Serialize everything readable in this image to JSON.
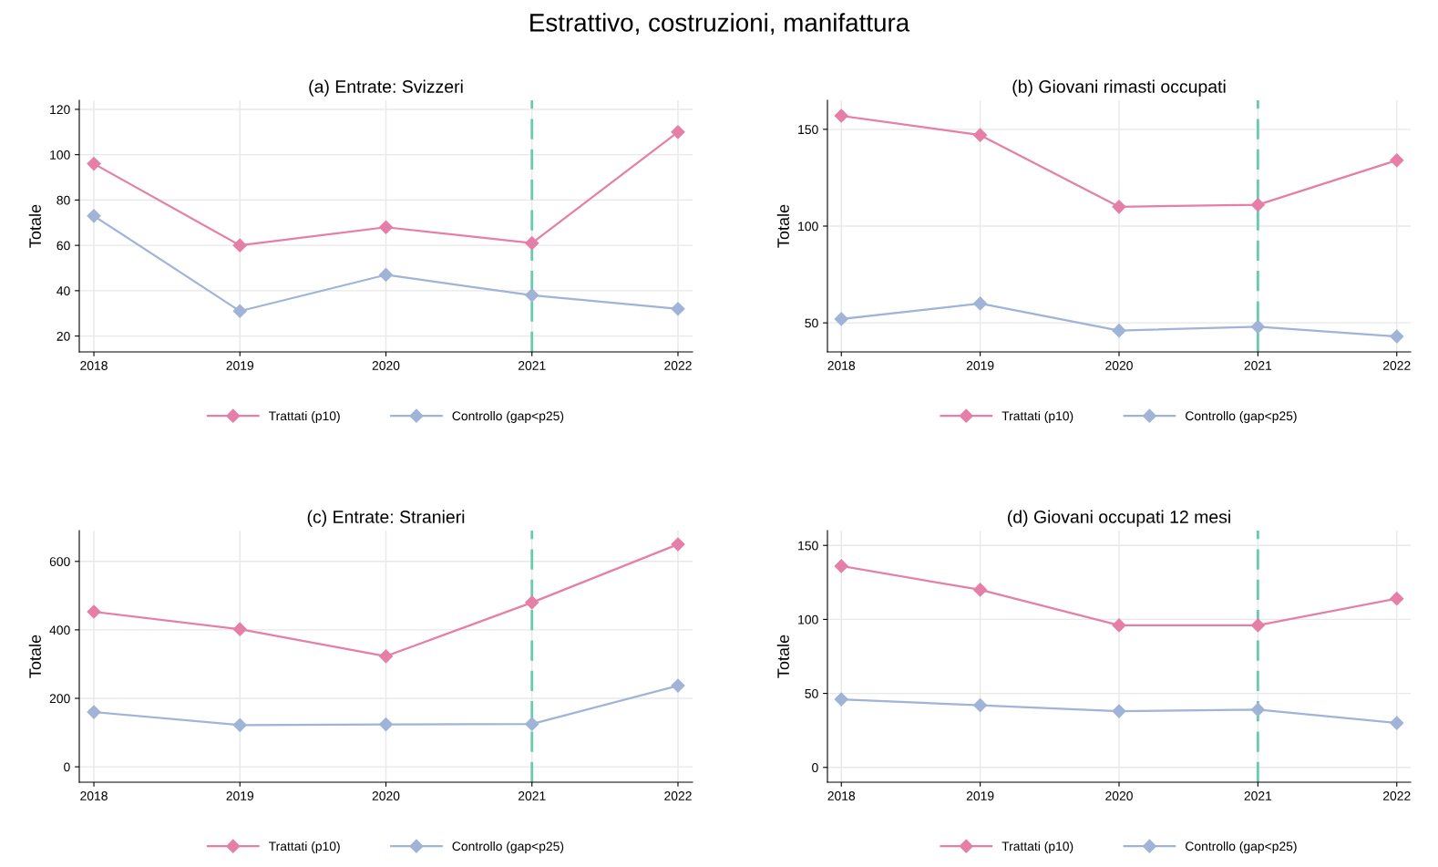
{
  "chart_data": [
    {
      "type": "line",
      "title": "(a) Entrate: Svizzeri",
      "ylabel": "Totale",
      "annotations": [
        "Estrattivo, costruzioni, manifattura"
      ],
      "x": [
        2018,
        2019,
        2020,
        2021,
        2022
      ],
      "xlim": [
        2017.9,
        2022.1
      ],
      "xticks": [
        2018,
        2019,
        2020,
        2021,
        2022
      ],
      "ylim": [
        13,
        124
      ],
      "yticks": [
        20,
        40,
        60,
        80,
        100,
        120
      ],
      "grid": true,
      "legend": "bottom",
      "marker": "diamond",
      "line_style": "solid",
      "series": [
        {
          "name": "Trattati (p10)",
          "color": "#e57fa8",
          "values": [
            96,
            60,
            68,
            61,
            110
          ]
        },
        {
          "name": "Controllo (gap<p25)",
          "color": "#9fb4d6",
          "values": [
            73,
            31,
            47,
            38,
            32
          ]
        }
      ],
      "ref_lines": [
        {
          "axis": "x",
          "value": 2021,
          "color": "#66ccaa",
          "line_style": "dashed"
        }
      ]
    },
    {
      "type": "line",
      "title": "(b) Giovani rimasti occupati",
      "ylabel": "Totale",
      "x": [
        2018,
        2019,
        2020,
        2021,
        2022
      ],
      "xlim": [
        2017.9,
        2022.1
      ],
      "xticks": [
        2018,
        2019,
        2020,
        2021,
        2022
      ],
      "ylim": [
        35,
        165
      ],
      "yticks": [
        50,
        100,
        150
      ],
      "grid": true,
      "legend": "bottom",
      "marker": "diamond",
      "line_style": "solid",
      "series": [
        {
          "name": "Trattati (p10)",
          "color": "#e57fa8",
          "values": [
            157,
            147,
            110,
            111,
            134
          ]
        },
        {
          "name": "Controllo (gap<p25)",
          "color": "#9fb4d6",
          "values": [
            52,
            60,
            46,
            48,
            43
          ]
        }
      ],
      "ref_lines": [
        {
          "axis": "x",
          "value": 2021,
          "color": "#66ccaa",
          "line_style": "dashed"
        }
      ]
    },
    {
      "type": "line",
      "title": "(c) Entrate: Stranieri",
      "ylabel": "Totale",
      "x": [
        2018,
        2019,
        2020,
        2021,
        2022
      ],
      "xlim": [
        2017.9,
        2022.1
      ],
      "xticks": [
        2018,
        2019,
        2020,
        2021,
        2022
      ],
      "ylim": [
        -45,
        690
      ],
      "yticks": [
        0,
        200,
        400,
        600
      ],
      "grid": true,
      "legend": "bottom",
      "marker": "diamond",
      "line_style": "solid",
      "series": [
        {
          "name": "Trattati (p10)",
          "color": "#e57fa8",
          "values": [
            453,
            402,
            323,
            480,
            650
          ]
        },
        {
          "name": "Controllo (gap<p25)",
          "color": "#9fb4d6",
          "values": [
            160,
            122,
            124,
            125,
            237
          ]
        }
      ],
      "ref_lines": [
        {
          "axis": "x",
          "value": 2021,
          "color": "#66ccaa",
          "line_style": "dashed"
        }
      ]
    },
    {
      "type": "line",
      "title": "(d) Giovani occupati 12 mesi",
      "ylabel": "Totale",
      "x": [
        2018,
        2019,
        2020,
        2021,
        2022
      ],
      "xlim": [
        2017.9,
        2022.1
      ],
      "xticks": [
        2018,
        2019,
        2020,
        2021,
        2022
      ],
      "ylim": [
        -10,
        160
      ],
      "yticks": [
        0,
        50,
        100,
        150
      ],
      "grid": true,
      "legend": "bottom",
      "marker": "diamond",
      "line_style": "solid",
      "series": [
        {
          "name": "Trattati (p10)",
          "color": "#e57fa8",
          "values": [
            136,
            120,
            96,
            96,
            114
          ]
        },
        {
          "name": "Controllo (gap<p25)",
          "color": "#9fb4d6",
          "values": [
            46,
            42,
            38,
            39,
            30
          ]
        }
      ],
      "ref_lines": [
        {
          "axis": "x",
          "value": 2021,
          "color": "#66ccaa",
          "line_style": "dashed"
        }
      ]
    }
  ]
}
